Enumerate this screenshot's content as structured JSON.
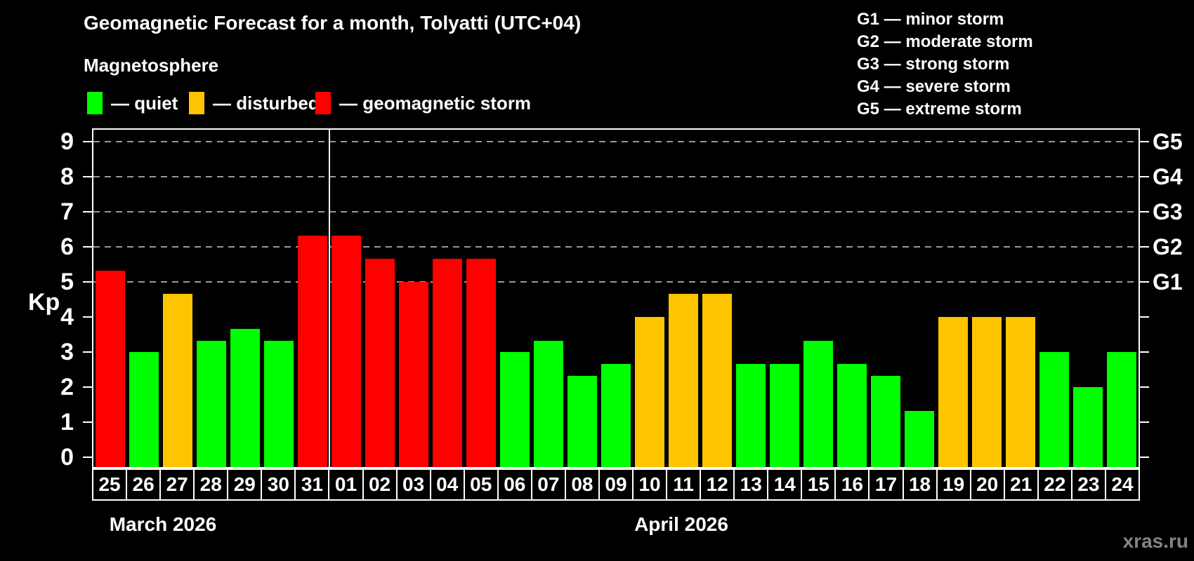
{
  "header": {
    "title": "Geomagnetic Forecast for a month, Tolyatti (UTC+04)",
    "subtitle": "Magnetosphere"
  },
  "legend": {
    "items": [
      {
        "key": "quiet",
        "label": "— quiet",
        "color": "#00ff00"
      },
      {
        "key": "disturbed",
        "label": "— disturbed",
        "color": "#ffc400"
      },
      {
        "key": "storm",
        "label": "— geomagnetic storm",
        "color": "#ff0000"
      }
    ]
  },
  "g_legend": {
    "items": [
      "G1 — minor storm",
      "G2 — moderate storm",
      "G3 — strong storm",
      "G4 — severe storm",
      "G5 — extreme storm"
    ]
  },
  "watermark": "xras.ru",
  "colors": {
    "quiet": "#00ff00",
    "disturbed": "#ffc400",
    "storm": "#ff0000",
    "grid": "#999999",
    "axis": "#ffffff",
    "background": "#000000",
    "watermark": "#848484"
  },
  "chart_data": {
    "type": "bar",
    "title": "Geomagnetic Forecast for a month, Tolyatti (UTC+04)",
    "ylabel": "Kp",
    "ylim": [
      0,
      9
    ],
    "yticks": [
      0,
      1,
      2,
      3,
      4,
      5,
      6,
      7,
      8,
      9
    ],
    "grid_levels": [
      5,
      6,
      7,
      8,
      9
    ],
    "grid": "dashed horizontal at G-storm levels only",
    "legend_position": "top",
    "right_axis_labels": [
      {
        "label": "G1",
        "kp": 5
      },
      {
        "label": "G2",
        "kp": 6
      },
      {
        "label": "G3",
        "kp": 7
      },
      {
        "label": "G4",
        "kp": 8
      },
      {
        "label": "G5",
        "kp": 9
      }
    ],
    "months": [
      {
        "label": "March 2026",
        "days": 7
      },
      {
        "label": "April 2026",
        "days": 24
      }
    ],
    "bars": [
      {
        "day": "25",
        "kp": 5.33,
        "status": "storm"
      },
      {
        "day": "26",
        "kp": 3.0,
        "status": "quiet"
      },
      {
        "day": "27",
        "kp": 4.67,
        "status": "disturbed"
      },
      {
        "day": "28",
        "kp": 3.33,
        "status": "quiet"
      },
      {
        "day": "29",
        "kp": 3.67,
        "status": "quiet"
      },
      {
        "day": "30",
        "kp": 3.33,
        "status": "quiet"
      },
      {
        "day": "31",
        "kp": 6.33,
        "status": "storm"
      },
      {
        "day": "01",
        "kp": 6.33,
        "status": "storm"
      },
      {
        "day": "02",
        "kp": 5.67,
        "status": "storm"
      },
      {
        "day": "03",
        "kp": 5.0,
        "status": "storm"
      },
      {
        "day": "04",
        "kp": 5.67,
        "status": "storm"
      },
      {
        "day": "05",
        "kp": 5.67,
        "status": "storm"
      },
      {
        "day": "06",
        "kp": 3.0,
        "status": "quiet"
      },
      {
        "day": "07",
        "kp": 3.33,
        "status": "quiet"
      },
      {
        "day": "08",
        "kp": 2.33,
        "status": "quiet"
      },
      {
        "day": "09",
        "kp": 2.67,
        "status": "quiet"
      },
      {
        "day": "10",
        "kp": 4.0,
        "status": "disturbed"
      },
      {
        "day": "11",
        "kp": 4.67,
        "status": "disturbed"
      },
      {
        "day": "12",
        "kp": 4.67,
        "status": "disturbed"
      },
      {
        "day": "13",
        "kp": 2.67,
        "status": "quiet"
      },
      {
        "day": "14",
        "kp": 2.67,
        "status": "quiet"
      },
      {
        "day": "15",
        "kp": 3.33,
        "status": "quiet"
      },
      {
        "day": "16",
        "kp": 2.67,
        "status": "quiet"
      },
      {
        "day": "17",
        "kp": 2.33,
        "status": "quiet"
      },
      {
        "day": "18",
        "kp": 1.33,
        "status": "quiet"
      },
      {
        "day": "19",
        "kp": 4.0,
        "status": "disturbed"
      },
      {
        "day": "20",
        "kp": 4.0,
        "status": "disturbed"
      },
      {
        "day": "21",
        "kp": 4.0,
        "status": "disturbed"
      },
      {
        "day": "22",
        "kp": 3.0,
        "status": "quiet"
      },
      {
        "day": "23",
        "kp": 2.0,
        "status": "quiet"
      },
      {
        "day": "24",
        "kp": 3.0,
        "status": "quiet"
      }
    ]
  }
}
